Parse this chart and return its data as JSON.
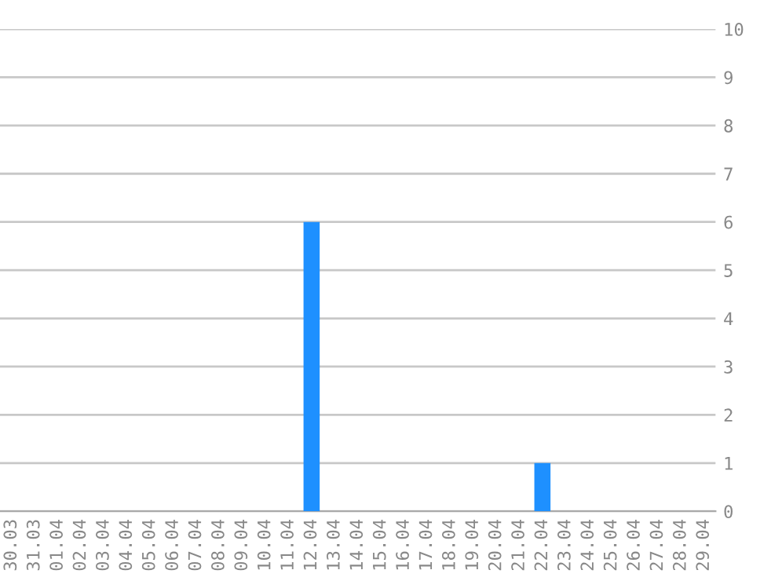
{
  "chart_data": {
    "type": "bar",
    "categories": [
      "30.03",
      "31.03",
      "01.04",
      "02.04",
      "03.04",
      "04.04",
      "05.04",
      "06.04",
      "07.04",
      "08.04",
      "09.04",
      "10.04",
      "11.04",
      "12.04",
      "13.04",
      "14.04",
      "15.04",
      "16.04",
      "17.04",
      "18.04",
      "19.04",
      "20.04",
      "21.04",
      "22.04",
      "23.04",
      "24.04",
      "25.04",
      "26.04",
      "27.04",
      "28.04",
      "29.04"
    ],
    "values": [
      0,
      0,
      0,
      0,
      0,
      0,
      0,
      0,
      0,
      0,
      0,
      0,
      0,
      6,
      0,
      0,
      0,
      0,
      0,
      0,
      0,
      0,
      0,
      1,
      0,
      0,
      0,
      0,
      0,
      0,
      0
    ],
    "color": "#1e90ff",
    "ylim": [
      0,
      10
    ],
    "yticks": [
      0,
      1,
      2,
      3,
      4,
      5,
      6,
      7,
      8,
      9,
      10
    ],
    "grid": "y"
  }
}
